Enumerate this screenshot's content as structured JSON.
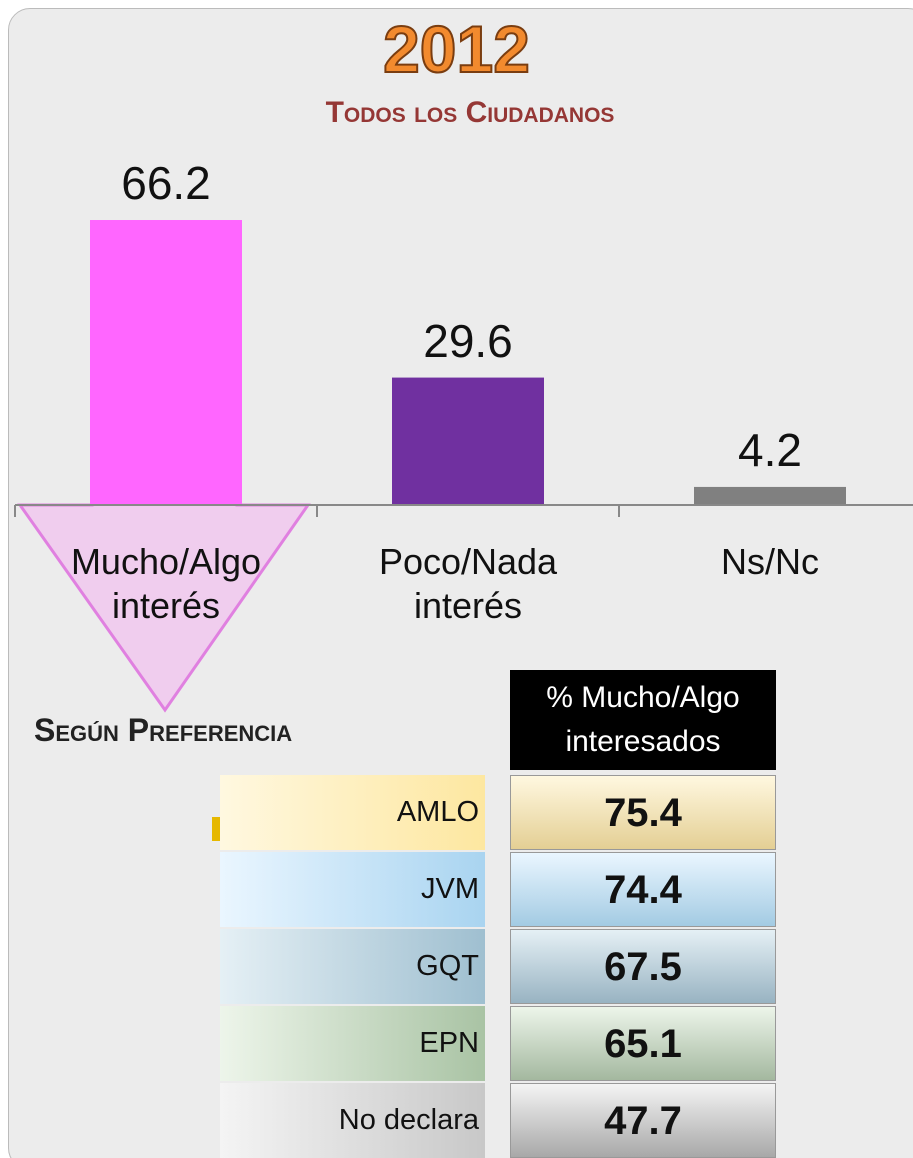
{
  "chart_data": {
    "type": "bar",
    "title": "2012",
    "subtitle": "Todos los Ciudadanos",
    "categories": [
      "Mucho/Algo interés",
      "Poco/Nada interés",
      "Ns/Nc"
    ],
    "values": [
      66.2,
      29.6,
      4.2
    ],
    "colors": [
      "#ff66ff",
      "#7030a0",
      "#808080"
    ]
  },
  "section_title": "Según Preferencia",
  "table": {
    "header": "% Mucho/Algo interesados",
    "rows": [
      {
        "label": "AMLO",
        "value": 75.4
      },
      {
        "label": "JVM",
        "value": 74.4
      },
      {
        "label": "GQT",
        "value": 67.5
      },
      {
        "label": "EPN",
        "value": 65.1
      },
      {
        "label": "No declara",
        "value": 47.7
      }
    ]
  }
}
